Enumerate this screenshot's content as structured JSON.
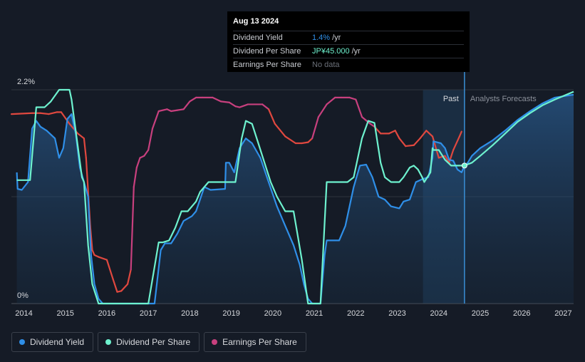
{
  "tooltip": {
    "date": "Aug 13 2024",
    "rows": [
      {
        "label": "Dividend Yield",
        "value": "1.4%",
        "unit": "/yr"
      },
      {
        "label": "Dividend Per Share",
        "value": "JP¥45.000",
        "unit": "/yr"
      },
      {
        "label": "Earnings Per Share",
        "value": "No data"
      }
    ]
  },
  "regions": {
    "past_label": "Past",
    "forecast_label": "Analysts Forecasts"
  },
  "legend": [
    {
      "label": "Dividend Yield",
      "color": "#2f8fe8"
    },
    {
      "label": "Dividend Per Share",
      "color": "#6ef2cf"
    },
    {
      "label": "Earnings Per Share",
      "color": "#c8407e"
    }
  ],
  "chart_data": {
    "type": "line",
    "xlim": [
      2013.7,
      2027.25
    ],
    "ylim": [
      0,
      2.2
    ],
    "y_tick_labels": [
      {
        "value": 2.2,
        "label": "2.2%"
      },
      {
        "value": 0,
        "label": "0%"
      }
    ],
    "x_ticks": [
      "2014",
      "2015",
      "2016",
      "2017",
      "2018",
      "2019",
      "2020",
      "2021",
      "2022",
      "2023",
      "2024",
      "2025",
      "2026",
      "2027"
    ],
    "past_region": [
      2023.62,
      2024.62
    ],
    "today_x": 2024.62,
    "series": [
      {
        "name": "Dividend Yield",
        "color": "#2f8fe8",
        "x": [
          2013.83,
          2013.85,
          2013.95,
          2014.1,
          2014.2,
          2014.3,
          2014.4,
          2014.55,
          2014.75,
          2014.85,
          2014.95,
          2015.05,
          2015.15,
          2015.25,
          2015.35,
          2015.45,
          2015.55,
          2015.62,
          2015.7,
          2015.8,
          2015.9,
          2015.95,
          2016.1,
          2017.0,
          2017.15,
          2017.3,
          2017.4,
          2017.55,
          2017.7,
          2017.85,
          2018.05,
          2018.15,
          2018.35,
          2018.5,
          2018.85,
          2018.87,
          2018.95,
          2019.07,
          2019.2,
          2019.35,
          2019.5,
          2019.7,
          2019.9,
          2020.1,
          2020.3,
          2020.5,
          2020.65,
          2020.75,
          2020.85,
          2020.95,
          2021.15,
          2021.25,
          2021.3,
          2021.6,
          2021.75,
          2021.95,
          2022.1,
          2022.25,
          2022.4,
          2022.55,
          2022.7,
          2022.85,
          2023.05,
          2023.15,
          2023.3,
          2023.45,
          2023.6,
          2023.75,
          2023.85,
          2023.87,
          2024.05,
          2024.15,
          2024.25,
          2024.35,
          2024.45,
          2024.55,
          2024.62,
          2024.7,
          2024.8,
          2025.0,
          2025.3,
          2025.6,
          2025.9,
          2026.2,
          2026.5,
          2026.8,
          2027.25
        ],
        "y": [
          1.35,
          1.18,
          1.17,
          1.25,
          1.8,
          1.88,
          1.82,
          1.78,
          1.7,
          1.5,
          1.6,
          1.9,
          1.95,
          1.75,
          1.4,
          1.25,
          1.1,
          0.5,
          0.2,
          0.05,
          0,
          0,
          0,
          0,
          0,
          0.55,
          0.62,
          0.62,
          0.72,
          0.85,
          0.9,
          0.95,
          1.2,
          1.17,
          1.18,
          1.45,
          1.45,
          1.35,
          1.6,
          1.7,
          1.65,
          1.5,
          1.25,
          1.0,
          0.8,
          0.6,
          0.4,
          0.2,
          0.05,
          0,
          0,
          0.5,
          0.65,
          0.65,
          0.8,
          1.2,
          1.42,
          1.43,
          1.3,
          1.1,
          1.07,
          1.0,
          0.98,
          1.05,
          1.07,
          1.25,
          1.28,
          1.3,
          1.5,
          1.67,
          1.65,
          1.6,
          1.48,
          1.47,
          1.38,
          1.35,
          1.42,
          1.45,
          1.52,
          1.6,
          1.68,
          1.78,
          1.89,
          1.98,
          2.06,
          2.12,
          2.15
        ]
      },
      {
        "name": "Dividend Per Share",
        "color": "#6ef2cf",
        "x": [
          2013.83,
          2013.85,
          2014.15,
          2014.3,
          2014.5,
          2014.65,
          2014.85,
          2015.1,
          2015.15,
          2015.4,
          2015.45,
          2015.55,
          2015.65,
          2015.8,
          2015.85,
          2016.0,
          2017.0,
          2017.25,
          2017.35,
          2017.5,
          2017.65,
          2017.8,
          2017.95,
          2018.15,
          2018.25,
          2018.45,
          2018.55,
          2019.1,
          2019.25,
          2019.35,
          2019.5,
          2019.65,
          2019.8,
          2019.95,
          2020.1,
          2020.3,
          2020.5,
          2020.6,
          2020.7,
          2020.8,
          2020.85,
          2021.1,
          2021.15,
          2021.3,
          2021.6,
          2021.8,
          2021.95,
          2022.15,
          2022.3,
          2022.45,
          2022.6,
          2022.7,
          2022.85,
          2023.05,
          2023.15,
          2023.3,
          2023.4,
          2023.5,
          2023.6,
          2023.65,
          2023.8,
          2023.85,
          2023.87,
          2024.0,
          2024.15,
          2024.3,
          2024.45,
          2024.62,
          2024.8,
          2025.0,
          2025.3,
          2025.6,
          2025.9,
          2026.2,
          2026.5,
          2026.8,
          2027.25
        ],
        "y": [
          1.27,
          1.27,
          1.27,
          2.02,
          2.02,
          2.08,
          2.2,
          2.2,
          2.1,
          1.3,
          1.25,
          0.6,
          0.2,
          0,
          0,
          0,
          0,
          0.63,
          0.63,
          0.65,
          0.78,
          0.95,
          0.95,
          1.05,
          1.15,
          1.25,
          1.25,
          1.25,
          1.7,
          1.88,
          1.85,
          1.65,
          1.45,
          1.25,
          1.1,
          0.95,
          0.95,
          0.7,
          0.45,
          0.15,
          0,
          0,
          0,
          1.25,
          1.25,
          1.25,
          1.3,
          1.7,
          1.88,
          1.86,
          1.45,
          1.3,
          1.25,
          1.25,
          1.3,
          1.4,
          1.42,
          1.38,
          1.3,
          1.25,
          1.35,
          1.6,
          1.58,
          1.58,
          1.48,
          1.42,
          1.42,
          1.42,
          1.45,
          1.52,
          1.63,
          1.75,
          1.87,
          1.96,
          2.04,
          2.1,
          2.18
        ]
      },
      {
        "name": "Earnings Per Share",
        "color": "#c8407e",
        "forecast_color": "#e0483f",
        "x": [
          2013.7,
          2014.2,
          2014.4,
          2014.6,
          2014.8,
          2014.9,
          2015.1,
          2015.3,
          2015.45,
          2015.5,
          2015.6,
          2015.65,
          2015.7,
          2015.8,
          2016.0,
          2016.15,
          2016.25,
          2016.35,
          2016.5,
          2016.58,
          2016.65,
          2016.72,
          2016.8,
          2016.9,
          2017.0,
          2017.1,
          2017.25,
          2017.45,
          2017.55,
          2017.7,
          2017.85,
          2018.0,
          2018.15,
          2018.3,
          2018.55,
          2018.75,
          2018.95,
          2019.1,
          2019.2,
          2019.4,
          2019.55,
          2019.75,
          2019.9,
          2020.05,
          2020.3,
          2020.55,
          2020.7,
          2020.85,
          2020.95,
          2021.1,
          2021.3,
          2021.5,
          2021.65,
          2021.85,
          2022.0,
          2022.15,
          2022.35,
          2022.45,
          2022.6,
          2022.8,
          2022.95,
          2023.05,
          2023.2,
          2023.4,
          2023.55,
          2023.7,
          2023.85,
          2024.0,
          2024.15,
          2024.25,
          2024.35,
          2024.5,
          2024.55
        ],
        "y": [
          1.95,
          1.96,
          1.96,
          1.95,
          1.97,
          1.97,
          1.85,
          1.75,
          1.7,
          1.5,
          0.8,
          0.55,
          0.5,
          0.48,
          0.45,
          0.25,
          0.12,
          0.13,
          0.2,
          0.35,
          1.2,
          1.4,
          1.5,
          1.52,
          1.58,
          1.8,
          1.98,
          2.0,
          1.98,
          1.99,
          2.0,
          2.08,
          2.12,
          2.12,
          2.12,
          2.08,
          2.07,
          2.03,
          2.02,
          2.05,
          2.05,
          2.05,
          2.0,
          1.85,
          1.72,
          1.65,
          1.65,
          1.66,
          1.7,
          1.92,
          2.05,
          2.12,
          2.12,
          2.12,
          2.1,
          1.92,
          1.85,
          1.82,
          1.75,
          1.75,
          1.78,
          1.7,
          1.62,
          1.63,
          1.7,
          1.78,
          1.72,
          1.5,
          1.52,
          1.45,
          1.58,
          1.72,
          1.77
        ]
      }
    ]
  }
}
